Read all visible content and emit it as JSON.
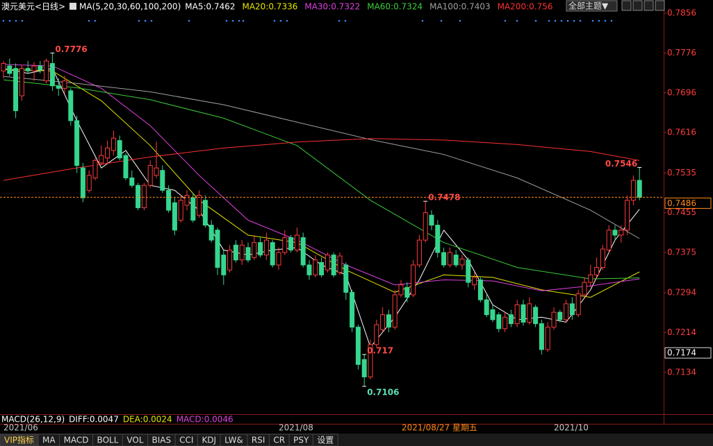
{
  "header": {
    "symbol": "澳元美元<日线>",
    "ma_params": "MA(5,20,30,60,100,200)",
    "theme_button": "全部主题▼"
  },
  "chart_data": {
    "type": "candlestick",
    "categories": [
      "2021/06",
      null,
      null,
      null,
      null,
      null,
      null,
      null,
      null,
      null,
      null,
      null,
      null,
      null,
      null,
      null,
      null,
      null,
      null,
      null,
      null,
      null,
      null,
      null,
      null,
      null,
      null,
      null,
      null,
      null,
      null,
      null,
      null,
      null,
      null,
      null,
      null,
      null,
      null,
      null,
      null,
      null,
      null,
      null,
      null,
      "2021/08",
      null,
      null,
      null,
      null,
      null,
      null,
      null,
      null,
      null,
      null,
      null,
      null,
      null,
      null,
      null,
      null,
      null,
      null,
      null,
      null,
      null,
      null,
      null,
      null,
      null,
      null,
      null,
      null,
      null,
      null,
      null,
      null,
      null,
      null,
      null,
      null,
      null,
      null,
      null,
      null,
      null,
      null,
      null,
      null,
      "2021/10",
      null,
      null,
      null,
      null,
      null,
      null,
      null,
      null,
      null,
      null,
      null,
      null,
      null,
      null
    ],
    "open": [
      0.774,
      0.775,
      0.7745,
      0.769,
      0.7745,
      0.774,
      0.775,
      0.772,
      0.7755,
      0.771,
      0.7705,
      0.77,
      0.764,
      0.7545,
      0.75,
      0.7525,
      0.7555,
      0.7565,
      0.758,
      0.76,
      0.757,
      0.7525,
      0.751,
      0.7465,
      0.751,
      0.753,
      0.754,
      0.75,
      0.7475,
      0.744,
      0.747,
      0.7485,
      0.745,
      0.748,
      0.743,
      0.742,
      0.737,
      0.734,
      0.739,
      0.736,
      0.7385,
      0.7365,
      0.7395,
      0.737,
      0.7395,
      0.735,
      0.7375,
      0.7405,
      0.738,
      0.7405,
      0.735,
      0.733,
      0.7355,
      0.734,
      0.737,
      0.7335,
      0.735,
      0.7295,
      0.7225,
      0.716,
      0.7125,
      0.719,
      0.722,
      0.725,
      0.7225,
      0.729,
      0.7305,
      0.729,
      0.735,
      0.74,
      0.745,
      0.743,
      0.7375,
      0.735,
      0.737,
      0.735,
      0.736,
      0.731,
      0.732,
      0.728,
      0.726,
      0.725,
      0.7222,
      0.725,
      0.7232,
      0.727,
      0.7235,
      0.7265,
      0.7232,
      0.718,
      0.7225,
      0.7255,
      0.724,
      0.7272,
      0.725,
      0.729,
      0.7315,
      0.733,
      0.7345,
      0.738,
      0.742,
      0.741,
      0.742,
      0.748,
      0.752
    ],
    "high": [
      0.776,
      0.7765,
      0.7755,
      0.7752,
      0.776,
      0.7758,
      0.776,
      0.7765,
      0.7776,
      0.7725,
      0.773,
      0.7705,
      0.765,
      0.7555,
      0.754,
      0.7565,
      0.759,
      0.76,
      0.762,
      0.761,
      0.7575,
      0.754,
      0.7515,
      0.7515,
      0.756,
      0.7598,
      0.755,
      0.751,
      0.7485,
      0.749,
      0.75,
      0.7495,
      0.75,
      0.749,
      0.744,
      0.7425,
      0.738,
      0.739,
      0.74,
      0.74,
      0.7395,
      0.741,
      0.7405,
      0.7415,
      0.74,
      0.7385,
      0.742,
      0.741,
      0.7425,
      0.7415,
      0.736,
      0.737,
      0.7365,
      0.7375,
      0.7375,
      0.7375,
      0.7355,
      0.73,
      0.723,
      0.717,
      0.72,
      0.724,
      0.7265,
      0.726,
      0.73,
      0.732,
      0.7315,
      0.736,
      0.741,
      0.7478,
      0.746,
      0.744,
      0.7385,
      0.7385,
      0.738,
      0.737,
      0.7365,
      0.7335,
      0.7325,
      0.729,
      0.727,
      0.7255,
      0.7255,
      0.726,
      0.728,
      0.728,
      0.7285,
      0.727,
      0.724,
      0.7235,
      0.7265,
      0.726,
      0.728,
      0.7285,
      0.73,
      0.7325,
      0.735,
      0.7365,
      0.739,
      0.743,
      0.743,
      0.743,
      0.749,
      0.753,
      0.7546
    ],
    "low": [
      0.7725,
      0.773,
      0.7645,
      0.768,
      0.7735,
      0.772,
      0.7735,
      0.7715,
      0.77,
      0.769,
      0.7695,
      0.763,
      0.7535,
      0.7476,
      0.7495,
      0.752,
      0.755,
      0.7555,
      0.757,
      0.756,
      0.752,
      0.7505,
      0.746,
      0.746,
      0.7505,
      0.7525,
      0.7495,
      0.7455,
      0.741,
      0.7435,
      0.746,
      0.7435,
      0.7445,
      0.7425,
      0.7395,
      0.733,
      0.731,
      0.7335,
      0.7355,
      0.735,
      0.7355,
      0.736,
      0.7365,
      0.736,
      0.7345,
      0.734,
      0.737,
      0.7375,
      0.7375,
      0.7345,
      0.732,
      0.7325,
      0.7325,
      0.7335,
      0.7325,
      0.733,
      0.728,
      0.7215,
      0.714,
      0.7106,
      0.712,
      0.7185,
      0.7215,
      0.7215,
      0.722,
      0.7285,
      0.7275,
      0.7285,
      0.7345,
      0.7395,
      0.742,
      0.7365,
      0.7345,
      0.7345,
      0.7345,
      0.734,
      0.7305,
      0.73,
      0.7275,
      0.7245,
      0.7235,
      0.7215,
      0.7215,
      0.7225,
      0.7225,
      0.7228,
      0.723,
      0.7225,
      0.717,
      0.7175,
      0.722,
      0.7235,
      0.7235,
      0.724,
      0.7245,
      0.7285,
      0.7305,
      0.7325,
      0.734,
      0.7375,
      0.74,
      0.7395,
      0.741,
      0.747,
      0.748
    ],
    "close": [
      0.7755,
      0.7735,
      0.766,
      0.7745,
      0.774,
      0.775,
      0.7742,
      0.776,
      0.771,
      0.7705,
      0.772,
      0.764,
      0.755,
      0.7485,
      0.753,
      0.756,
      0.757,
      0.7585,
      0.7605,
      0.7565,
      0.7525,
      0.751,
      0.7465,
      0.751,
      0.755,
      0.7545,
      0.75,
      0.746,
      0.742,
      0.748,
      0.749,
      0.744,
      0.749,
      0.743,
      0.74,
      0.7345,
      0.733,
      0.738,
      0.736,
      0.739,
      0.736,
      0.7395,
      0.737,
      0.74,
      0.735,
      0.7375,
      0.7405,
      0.738,
      0.741,
      0.735,
      0.733,
      0.736,
      0.733,
      0.737,
      0.733,
      0.7368,
      0.7295,
      0.7225,
      0.715,
      0.7125,
      0.719,
      0.723,
      0.725,
      0.7225,
      0.729,
      0.731,
      0.7285,
      0.735,
      0.74,
      0.7455,
      0.743,
      0.7375,
      0.735,
      0.7375,
      0.735,
      0.7362,
      0.7315,
      0.7325,
      0.728,
      0.725,
      0.724,
      0.7222,
      0.7245,
      0.7232,
      0.727,
      0.7235,
      0.7272,
      0.7232,
      0.718,
      0.7225,
      0.7255,
      0.724,
      0.7272,
      0.725,
      0.7292,
      0.7315,
      0.733,
      0.7345,
      0.7382,
      0.742,
      0.741,
      0.742,
      0.748,
      0.752,
      0.7486
    ],
    "up_color": "#ff3c3c",
    "down_color": "#36d68f",
    "ma_lines": [
      {
        "name": "MA5:0.7462",
        "color": "#ffffff",
        "x": [
          0,
          4,
          8,
          12,
          16,
          20,
          24,
          28,
          32,
          36,
          40,
          44,
          48,
          52,
          56,
          60,
          64,
          68,
          72,
          76,
          80,
          84,
          88,
          92,
          96,
          100,
          104
        ],
        "values": [
          0.7745,
          0.7735,
          0.7745,
          0.764,
          0.7545,
          0.758,
          0.751,
          0.75,
          0.746,
          0.738,
          0.737,
          0.738,
          0.7385,
          0.735,
          0.733,
          0.7185,
          0.7245,
          0.732,
          0.742,
          0.736,
          0.727,
          0.724,
          0.7245,
          0.7235,
          0.73,
          0.74,
          0.7462
        ]
      },
      {
        "name": "MA20:0.7336",
        "color": "#e6e600",
        "x": [
          0,
          8,
          16,
          24,
          32,
          40,
          48,
          56,
          64,
          72,
          80,
          88,
          96,
          104
        ],
        "values": [
          0.7743,
          0.774,
          0.768,
          0.759,
          0.748,
          0.741,
          0.7395,
          0.734,
          0.7295,
          0.733,
          0.7325,
          0.73,
          0.7285,
          0.7336
        ]
      },
      {
        "name": "MA30:0.7322",
        "color": "#e040e0",
        "x": [
          0,
          8,
          16,
          24,
          32,
          40,
          48,
          56,
          64,
          72,
          80,
          88,
          96,
          104
        ],
        "values": [
          0.7753,
          0.775,
          0.7705,
          0.763,
          0.753,
          0.744,
          0.74,
          0.735,
          0.731,
          0.732,
          0.7318,
          0.7298,
          0.7308,
          0.7322
        ]
      },
      {
        "name": "MA60:0.7324",
        "color": "#3ccc3c",
        "x": [
          0,
          12,
          24,
          36,
          48,
          60,
          72,
          84,
          96,
          104
        ],
        "values": [
          0.7722,
          0.7706,
          0.7682,
          0.7645,
          0.759,
          0.748,
          0.7395,
          0.7345,
          0.7322,
          0.7324
        ]
      },
      {
        "name": "MA100:0.7403",
        "color": "#a0a0a0",
        "x": [
          0,
          12,
          24,
          36,
          48,
          60,
          72,
          84,
          96,
          104
        ],
        "values": [
          0.7729,
          0.7715,
          0.7698,
          0.7672,
          0.7637,
          0.7602,
          0.7572,
          0.7525,
          0.746,
          0.7403
        ]
      },
      {
        "name": "MA200:0.756",
        "color": "#ff3030",
        "x": [
          0,
          12,
          24,
          36,
          48,
          60,
          72,
          84,
          96,
          104
        ],
        "values": [
          0.752,
          0.7545,
          0.7567,
          0.7585,
          0.7597,
          0.7604,
          0.7601,
          0.7592,
          0.7578,
          0.756
        ]
      }
    ],
    "extreme_labels": [
      0.7776,
      0.7478,
      0.7546,
      0.7106,
      0.717
    ],
    "last_price": 0.7486,
    "marker_price": 0.7174,
    "crosshair_date": "2021/08/27 星期五",
    "ylim": [
      0.705,
      0.788
    ],
    "yticks": [
      0.7856,
      0.7776,
      0.7696,
      0.7616,
      0.7535,
      0.7455,
      0.7375,
      0.7294,
      0.7214,
      0.7134
    ],
    "grid": false
  },
  "macd_header": [
    {
      "text": "MACD(26,12,9)",
      "color": "#ffffff"
    },
    {
      "text": "DIFF:0.0047",
      "color": "#ffffff"
    },
    {
      "text": "DEA:0.0024",
      "color": "#e6e600"
    },
    {
      "text": "MACD:0.0046",
      "color": "#e040e0"
    }
  ],
  "tabs": [
    "VIP指标",
    "MA",
    "MACD",
    "BOLL",
    "VOL",
    "BIAS",
    "CCI",
    "KDJ",
    "LW&",
    "RSI",
    "CR",
    "PSY",
    "设置"
  ]
}
